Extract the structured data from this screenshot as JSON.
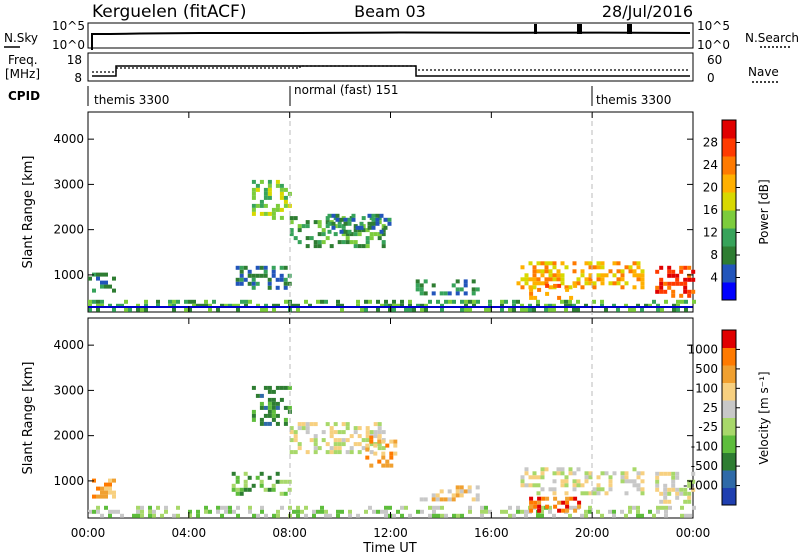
{
  "header": {
    "station": "Kerguelen (fitACF)",
    "beam": "Beam 03",
    "date": "28/Jul/2016"
  },
  "noise_panel": {
    "left_label": "N.Sky",
    "right_label": "N.Search",
    "left_ticks": [
      "10^5",
      "10^0"
    ],
    "right_ticks": [
      "10^5",
      "10^0"
    ]
  },
  "freq_panel": {
    "left_label_line1": "Freq.",
    "left_label_line2": "[MHz]",
    "right_label": "Nave",
    "left_ticks": [
      "18",
      "8"
    ],
    "right_ticks": [
      "60",
      "0"
    ]
  },
  "cpid_panel": {
    "label": "CPID",
    "segments": [
      {
        "label": "themis 3300",
        "start_hour": 0,
        "end_hour": 8
      },
      {
        "label": "normal (fast) 151",
        "start_hour": 8,
        "end_hour": 20
      },
      {
        "label": "themis 3300",
        "start_hour": 20,
        "end_hour": 24
      }
    ]
  },
  "colorbars": {
    "power": {
      "label": "Power [dB]",
      "ticks": [
        "28",
        "24",
        "20",
        "16",
        "12",
        "8",
        "4"
      ],
      "colors": [
        "#0000ff",
        "#2255bb",
        "#2e7d32",
        "#37a35a",
        "#7ccc3c",
        "#d8d800",
        "#ffb000",
        "#ff7a00",
        "#ff3a00",
        "#e00000"
      ]
    },
    "velocity": {
      "label": "Velocity [m s⁻¹]",
      "ticks": [
        "1000",
        "500",
        "100",
        "25",
        "-25",
        "-100",
        "-500",
        "-1000"
      ],
      "colors": [
        "#1f3fb0",
        "#2f6aa8",
        "#2e7d32",
        "#5ebd3c",
        "#a8d86a",
        "#c8c8c8",
        "#f7d080",
        "#f0a030",
        "#ff7a00",
        "#e00000"
      ]
    }
  },
  "chart_data": [
    {
      "type": "heatmap",
      "title": "",
      "ylabel": "Slant Range [km]",
      "xlabel": "Time UT",
      "xlim_hours": [
        0,
        24
      ],
      "ylim": [
        180,
        4600
      ],
      "y_ticks": [
        "1000",
        "2000",
        "3000",
        "4000"
      ],
      "x_ticks": [
        "00:00",
        "04:00",
        "08:00",
        "12:00",
        "16:00",
        "20:00",
        "00:00"
      ],
      "colorbar": "power",
      "regions": [
        {
          "t0": 0.0,
          "t1": 1.0,
          "r0": 620,
          "r1": 1050,
          "level": 2
        },
        {
          "t0": 0.0,
          "t1": 24.0,
          "r0": 200,
          "r1": 450,
          "level": 3
        },
        {
          "t0": 5.7,
          "t1": 8.0,
          "r0": 700,
          "r1": 1200,
          "level": 2
        },
        {
          "t0": 6.5,
          "t1": 8.0,
          "r0": 2300,
          "r1": 3100,
          "level": 4
        },
        {
          "t0": 8.0,
          "t1": 11.8,
          "r0": 1600,
          "r1": 2300,
          "level": 3
        },
        {
          "t0": 9.5,
          "t1": 12.0,
          "r0": 1950,
          "r1": 2350,
          "level": 2
        },
        {
          "t0": 13.0,
          "t1": 15.5,
          "r0": 550,
          "r1": 900,
          "level": 2
        },
        {
          "t0": 17.0,
          "t1": 22.0,
          "r0": 750,
          "r1": 1300,
          "level": 6
        },
        {
          "t0": 17.5,
          "t1": 19.5,
          "r0": 500,
          "r1": 800,
          "level": 7
        },
        {
          "t0": 22.5,
          "t1": 24.0,
          "r0": 550,
          "r1": 1200,
          "level": 8
        }
      ]
    },
    {
      "type": "heatmap",
      "title": "",
      "ylabel": "Slant Range [km]",
      "xlabel": "Time UT",
      "xlim_hours": [
        0,
        24
      ],
      "ylim": [
        180,
        4600
      ],
      "y_ticks": [
        "1000",
        "2000",
        "3000",
        "4000"
      ],
      "x_ticks": [
        "00:00",
        "04:00",
        "08:00",
        "12:00",
        "16:00",
        "20:00",
        "00:00"
      ],
      "colorbar": "velocity",
      "regions": [
        {
          "t0": 0.0,
          "t1": 1.0,
          "r0": 620,
          "r1": 1050,
          "level": 7
        },
        {
          "t0": 0.0,
          "t1": 24.0,
          "r0": 200,
          "r1": 450,
          "level": 4
        },
        {
          "t0": 5.7,
          "t1": 8.0,
          "r0": 700,
          "r1": 1200,
          "level": 3
        },
        {
          "t0": 6.5,
          "t1": 8.0,
          "r0": 2300,
          "r1": 3100,
          "level": 2
        },
        {
          "t0": 8.0,
          "t1": 11.8,
          "r0": 1600,
          "r1": 2300,
          "level": 5
        },
        {
          "t0": 11.0,
          "t1": 12.2,
          "r0": 1300,
          "r1": 2000,
          "level": 7
        },
        {
          "t0": 13.0,
          "t1": 15.5,
          "r0": 550,
          "r1": 900,
          "level": 6
        },
        {
          "t0": 17.0,
          "t1": 22.0,
          "r0": 750,
          "r1": 1300,
          "level": 5
        },
        {
          "t0": 17.5,
          "t1": 19.5,
          "r0": 350,
          "r1": 650,
          "level": 8
        },
        {
          "t0": 22.5,
          "t1": 24.0,
          "r0": 550,
          "r1": 1200,
          "level": 5
        }
      ]
    }
  ]
}
